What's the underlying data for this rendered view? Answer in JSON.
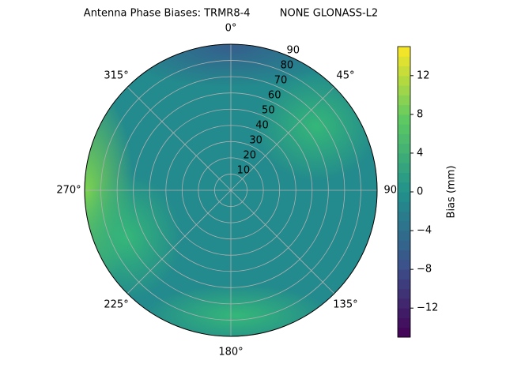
{
  "chart_data": {
    "type": "polar_contour",
    "title": "Antenna Phase Biases: TRMR8-4         NONE GLONASS-L2",
    "rlim": [
      0,
      90
    ],
    "rticks": [
      10,
      20,
      30,
      40,
      50,
      60,
      70,
      80,
      90
    ],
    "thetaticks": [
      {
        "value": 0,
        "label": "0°"
      },
      {
        "value": 45,
        "label": "45°"
      },
      {
        "value": 90,
        "label": "90°"
      },
      {
        "value": 135,
        "label": "135°"
      },
      {
        "value": 180,
        "label": "180°"
      },
      {
        "value": 225,
        "label": "225°"
      },
      {
        "value": 270,
        "label": "270°"
      },
      {
        "value": 315,
        "label": "315°"
      }
    ],
    "colorbar": {
      "label": "Bias (mm)",
      "lim": [
        -15,
        15
      ],
      "ticks": [
        {
          "value": -12,
          "label": "−12"
        },
        {
          "value": -8,
          "label": "−8"
        },
        {
          "value": -4,
          "label": "−4"
        },
        0,
        4,
        8,
        12
      ]
    },
    "grid": true
  }
}
